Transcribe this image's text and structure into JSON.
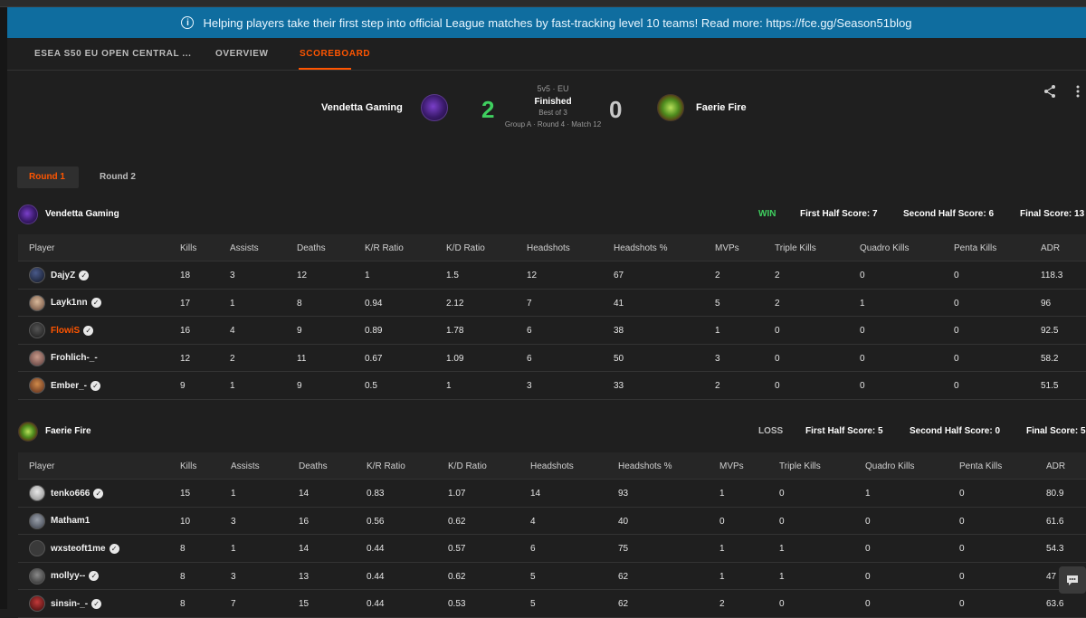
{
  "banner": {
    "icon": "info-icon",
    "text": "Helping players take their first step into official League matches by fast-tracking level 10 teams! Read more: https://fce.gg/Season51blog",
    "bg": "#0f6d9f"
  },
  "nav": {
    "tabs": [
      {
        "label": "ESEA S50 EU OPEN CENTRAL ..."
      },
      {
        "label": "OVERVIEW"
      },
      {
        "label": "SCOREBOARD"
      }
    ],
    "accent": "#ff5500"
  },
  "match": {
    "team1": {
      "name": "Vendetta Gaming",
      "score": "2",
      "score_color": "#3fcf5f"
    },
    "team2": {
      "name": "Faerie Fire",
      "score": "0",
      "score_color": "#c8c8c8"
    },
    "format": "5v5 · EU",
    "status": "Finished",
    "best_of": "Best of 3",
    "stage": "Group A · Round 4 · Match 12"
  },
  "round_tabs": [
    {
      "label": "Round 1"
    },
    {
      "label": "Round 2"
    }
  ],
  "columns": [
    "Player",
    "Kills",
    "Assists",
    "Deaths",
    "K/R Ratio",
    "K/D Ratio",
    "Headshots",
    "Headshots %",
    "MVPs",
    "Triple Kills",
    "Quadro Kills",
    "Penta Kills",
    "ADR"
  ],
  "teams": [
    {
      "name": "Vendetta Gaming",
      "result": "WIN",
      "result_color": "#3fcf5f",
      "first_half": "First Half Score: 7",
      "second_half": "Second Half Score: 6",
      "final": "Final Score: 13",
      "players": [
        {
          "name": "DajyZ",
          "verified": true,
          "highlight": false,
          "stats": [
            "18",
            "3",
            "12",
            "1",
            "1.5",
            "12",
            "67",
            "2",
            "2",
            "0",
            "0",
            "118.3"
          ]
        },
        {
          "name": "Layk1nn",
          "verified": true,
          "highlight": false,
          "stats": [
            "17",
            "1",
            "8",
            "0.94",
            "2.12",
            "7",
            "41",
            "5",
            "2",
            "1",
            "0",
            "96"
          ]
        },
        {
          "name": "FlowiS",
          "verified": true,
          "highlight": true,
          "stats": [
            "16",
            "4",
            "9",
            "0.89",
            "1.78",
            "6",
            "38",
            "1",
            "0",
            "0",
            "0",
            "92.5"
          ]
        },
        {
          "name": "Frohlich-_-",
          "verified": false,
          "highlight": false,
          "stats": [
            "12",
            "2",
            "11",
            "0.67",
            "1.09",
            "6",
            "50",
            "3",
            "0",
            "0",
            "0",
            "58.2"
          ]
        },
        {
          "name": "Ember_-",
          "verified": true,
          "highlight": false,
          "stats": [
            "9",
            "1",
            "9",
            "0.5",
            "1",
            "3",
            "33",
            "2",
            "0",
            "0",
            "0",
            "51.5"
          ]
        }
      ]
    },
    {
      "name": "Faerie Fire",
      "result": "LOSS",
      "result_color": "#bdbdbd",
      "first_half": "First Half Score: 5",
      "second_half": "Second Half Score: 0",
      "final": "Final Score: 5",
      "players": [
        {
          "name": "tenko666",
          "verified": true,
          "highlight": false,
          "stats": [
            "15",
            "1",
            "14",
            "0.83",
            "1.07",
            "14",
            "93",
            "1",
            "0",
            "1",
            "0",
            "80.9"
          ]
        },
        {
          "name": "Matham1",
          "verified": false,
          "highlight": false,
          "stats": [
            "10",
            "3",
            "16",
            "0.56",
            "0.62",
            "4",
            "40",
            "0",
            "0",
            "0",
            "0",
            "61.6"
          ]
        },
        {
          "name": "wxsteoft1me",
          "verified": true,
          "highlight": false,
          "stats": [
            "8",
            "1",
            "14",
            "0.44",
            "0.57",
            "6",
            "75",
            "1",
            "1",
            "0",
            "0",
            "54.3"
          ]
        },
        {
          "name": "mollyy--",
          "verified": true,
          "highlight": false,
          "stats": [
            "8",
            "3",
            "13",
            "0.44",
            "0.62",
            "5",
            "62",
            "1",
            "1",
            "0",
            "0",
            "47"
          ]
        },
        {
          "name": "sinsin-_-",
          "verified": true,
          "highlight": false,
          "stats": [
            "8",
            "7",
            "15",
            "0.44",
            "0.53",
            "5",
            "62",
            "2",
            "0",
            "0",
            "0",
            "63.6"
          ]
        }
      ]
    }
  ]
}
